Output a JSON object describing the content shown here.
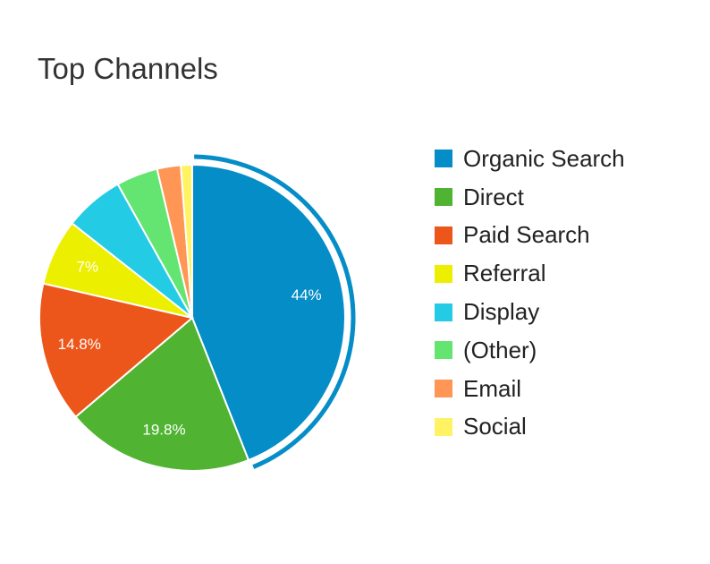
{
  "title": "Top Channels",
  "chart_data": {
    "type": "pie",
    "categories": [
      "Organic Search",
      "Direct",
      "Paid Search",
      "Referral",
      "Display",
      "(Other)",
      "Email",
      "Social"
    ],
    "values": [
      44,
      19.8,
      14.8,
      7,
      6.3,
      4.4,
      2.5,
      1.2
    ],
    "data_labels": [
      "44%",
      "19.8%",
      "14.8%",
      "7%",
      "",
      "",
      "",
      ""
    ],
    "colors": [
      "#058dc7",
      "#50b432",
      "#ed561b",
      "#edef00",
      "#24cbe5",
      "#64e572",
      "#ff9655",
      "#fff263"
    ],
    "highlighted": "Organic Search",
    "legend_position": "right"
  }
}
